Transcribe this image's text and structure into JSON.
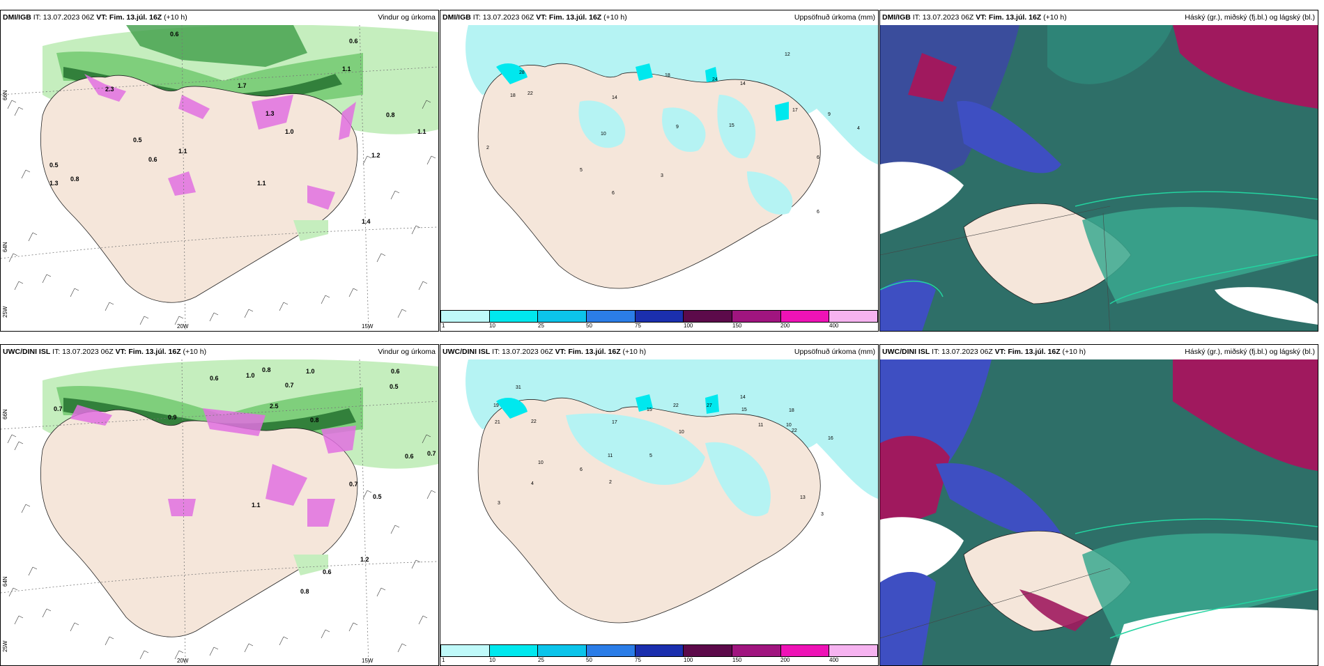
{
  "panels": [
    {
      "model": "DMI/IGB",
      "it_label": "IT: 13.07.2023 06Z",
      "vt_label": "VT: Fim. 13.júl. 16Z",
      "lead": "(+10 h)",
      "title": "Vindur og úrkoma",
      "lon_labels": [
        "20W",
        "15W"
      ],
      "lat_labels": [
        "66N",
        "64N",
        "25W"
      ],
      "values": [
        "0.6",
        "0.6",
        "1.1",
        "1.7",
        "1.3",
        "1.0",
        "0.8",
        "1.1",
        "0.5",
        "0.6",
        "0.5",
        "0.8",
        "1.3",
        "1.1",
        "1.4",
        "1.2",
        "2.3",
        "1.1"
      ]
    },
    {
      "model": "DMI/IGB",
      "it_label": "IT: 13.07.2023 06Z",
      "vt_label": "VT: Fim. 13.júl. 16Z",
      "lead": "(+10 h)",
      "title": "Uppsöfnuð úrkoma (mm)",
      "values": [
        "28",
        "22",
        "18",
        "14",
        "18",
        "24",
        "14",
        "12",
        "17",
        "15",
        "10",
        "9",
        "9",
        "4",
        "2",
        "5",
        "6",
        "3",
        "6",
        "6"
      ]
    },
    {
      "model": "DMI/IGB",
      "it_label": "IT: 13.07.2023 06Z",
      "vt_label": "VT: Fim. 13.júl. 16Z",
      "lead": "(+10 h)",
      "title": "Háský (gr.), miðský (fj.bl.) og lágský (bl.)"
    },
    {
      "model": "UWC/DINI ISL",
      "it_label": "IT: 13.07.2023 06Z",
      "vt_label": "VT: Fim. 13.júl. 16Z",
      "lead": "(+10 h)",
      "title": "Vindur og úrkoma",
      "lon_labels": [
        "20W",
        "15W"
      ],
      "lat_labels": [
        "66N",
        "64N",
        "25W"
      ],
      "values": [
        "0.6",
        "1.0",
        "0.8",
        "0.7",
        "1.0",
        "0.6",
        "0.5",
        "0.6",
        "0.7",
        "2.5",
        "0.9",
        "0.8",
        "0.7",
        "1.1",
        "0.5",
        "0.7",
        "1.2",
        "0.6",
        "0.8"
      ]
    },
    {
      "model": "UWC/DINI ISL",
      "it_label": "IT: 13.07.2023 06Z",
      "vt_label": "VT: Fim. 13.júl. 16Z",
      "lead": "(+10 h)",
      "title": "Uppsöfnuð úrkoma (mm)",
      "values": [
        "31",
        "19",
        "21",
        "22",
        "15",
        "22",
        "27",
        "14",
        "15",
        "17",
        "10",
        "10",
        "11",
        "10",
        "18",
        "22",
        "16",
        "13",
        "11",
        "6",
        "5",
        "4",
        "3",
        "2",
        "3"
      ]
    },
    {
      "model": "UWC/DINI ISL",
      "it_label": "IT: 13.07.2023 06Z",
      "vt_label": "VT: Fim. 13.júl. 16Z",
      "lead": "(+10 h)",
      "title": "Háský (gr.), miðský (fj.bl.) og lágský (bl.)"
    }
  ],
  "colorbar": {
    "ticks": [
      "1",
      "10",
      "25",
      "50",
      "75",
      "100",
      "150",
      "200",
      "400"
    ],
    "colors": [
      "#bff9f9",
      "#00e8ee",
      "#0cc4ea",
      "#2b7de7",
      "#1b2fae",
      "#5c0a4a",
      "#a0157f",
      "#ee13b6",
      "#f6b3f0"
    ]
  },
  "colors": {
    "land": "#f5e6da",
    "precip_light": "#b5f3f3",
    "wind_green_light": "#c5eebe",
    "wind_green": "#7fcf7c",
    "wind_green_dark": "#1f6b2a",
    "magenta": "#e070e0",
    "cloud_high": "#a0195e",
    "cloud_mid": "#2e8a7a",
    "cloud_low": "#3e4fc2"
  }
}
